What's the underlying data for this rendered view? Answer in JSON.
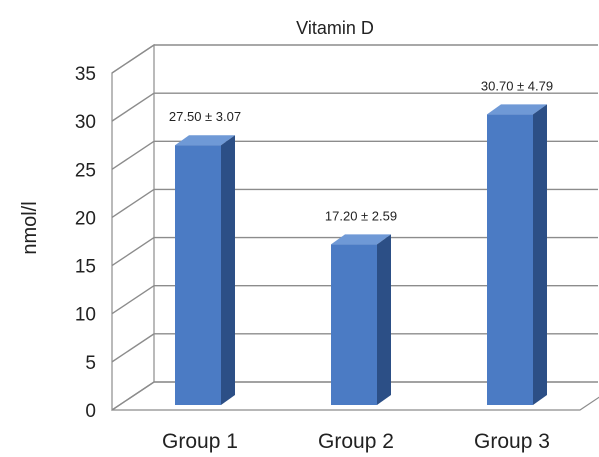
{
  "chart_data": {
    "type": "bar",
    "title": "Vitamin D",
    "ylabel": "nmol/l",
    "xlabel": "",
    "categories": [
      "Group 1",
      "Group 2",
      "Group 3"
    ],
    "values": [
      27.5,
      17.2,
      30.7
    ],
    "data_labels": [
      "27.50 ± 3.07",
      "17.20 ± 2.59",
      "30.70 ± 4.79"
    ],
    "y_ticks": [
      "0",
      "5",
      "10",
      "15",
      "20",
      "25",
      "30",
      "35"
    ],
    "ylim": [
      0,
      35
    ],
    "grid": true,
    "legend": "none",
    "style": "3d-column",
    "colors": {
      "bar_front": "#4b7bc4",
      "bar_side": "#2c4f86",
      "bar_top": "#6f99d6",
      "grid": "#8c8c8c"
    }
  }
}
